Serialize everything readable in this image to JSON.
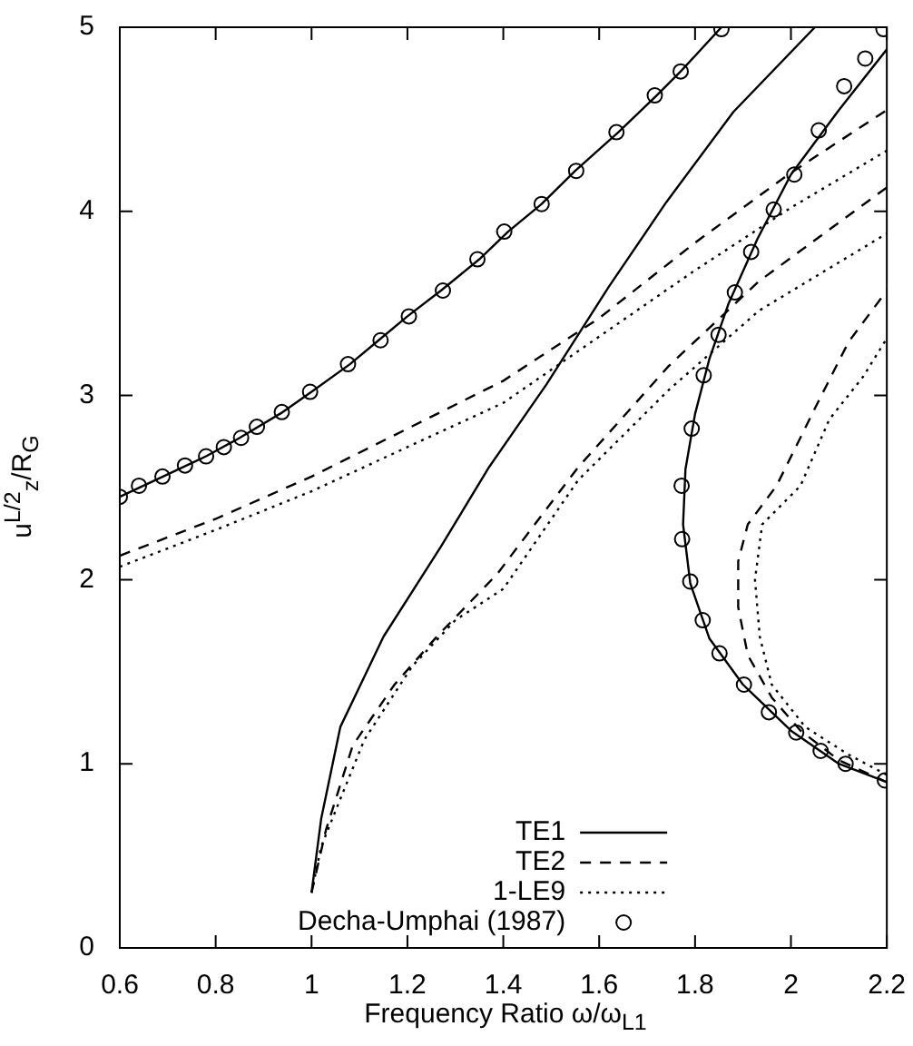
{
  "chart_data": {
    "type": "line",
    "xlabel": "Frequency Ratio ω/ω$_{L1}$",
    "ylabel": "u$^{L/2}$$_{z}$/R$_{G}$",
    "xlim": [
      0.6,
      2.2
    ],
    "xticks": [
      0.6,
      0.8,
      1,
      1.2,
      1.4,
      1.6,
      1.8,
      2,
      2.2
    ],
    "ylim": [
      0,
      5
    ],
    "yticks": [
      0,
      1,
      2,
      3,
      4,
      5
    ],
    "grid": false,
    "legend": "bottom right",
    "series": [
      {
        "name": "TE1",
        "color": "#000000",
        "type": "line",
        "marker": "none",
        "line_style": "solid",
        "x": [
          0.6,
          0.69,
          0.78,
          0.85,
          0.94,
          1.0,
          1.08,
          1.14,
          1.2,
          1.27,
          1.35,
          1.41,
          1.48,
          1.55,
          1.64,
          1.72,
          1.77,
          1.855,
          null,
          1.0,
          1.02,
          1.06,
          1.15,
          1.27,
          1.37,
          1.49,
          1.62,
          1.74,
          1.88,
          2.05,
          null,
          2.2,
          2.1,
          2.0,
          1.9,
          1.83,
          1.79,
          1.775,
          1.78,
          1.8,
          1.83,
          1.87,
          1.93,
          2.0,
          2.1,
          2.2
        ],
        "values": [
          2.45,
          2.56,
          2.67,
          2.77,
          2.91,
          3.02,
          3.17,
          3.3,
          3.43,
          3.57,
          3.74,
          3.89,
          4.04,
          4.22,
          4.43,
          4.63,
          4.76,
          5.0,
          null,
          0.3,
          0.7,
          1.2,
          1.69,
          2.18,
          2.61,
          3.06,
          3.59,
          4.05,
          4.54,
          5.0,
          null,
          0.9,
          1.0,
          1.18,
          1.43,
          1.68,
          1.98,
          2.3,
          2.6,
          2.9,
          3.2,
          3.5,
          3.85,
          4.2,
          4.55,
          4.88
        ]
      },
      {
        "name": "TE2",
        "color": "#000000",
        "type": "line",
        "marker": "none",
        "line_style": "dashed",
        "x": [
          0.6,
          0.8,
          1.0,
          1.2,
          1.4,
          1.6,
          1.8,
          2.0,
          2.2,
          null,
          1.0,
          1.03,
          1.086,
          1.173,
          1.261,
          1.387,
          1.556,
          1.745,
          1.933,
          2.2,
          null,
          2.2,
          2.1,
          2.02,
          1.96,
          1.91,
          1.89,
          1.89,
          1.91,
          1.97,
          2.05,
          2.12,
          2.2
        ],
        "values": [
          2.13,
          2.33,
          2.56,
          2.82,
          3.08,
          3.42,
          3.83,
          4.21,
          4.55,
          null,
          0.3,
          0.64,
          1.1,
          1.43,
          1.69,
          2.03,
          2.61,
          3.16,
          3.62,
          4.13,
          null,
          0.9,
          1.02,
          1.18,
          1.36,
          1.59,
          1.85,
          2.1,
          2.3,
          2.51,
          2.93,
          3.29,
          3.57
        ]
      },
      {
        "name": "1-LE9",
        "color": "#000000",
        "type": "line",
        "marker": "none",
        "line_style": "dotted",
        "x": [
          0.6,
          0.8,
          1.0,
          1.2,
          1.4,
          1.6,
          1.8,
          2.0,
          2.2,
          null,
          1.0,
          1.02,
          1.054,
          1.11,
          1.21,
          1.3,
          1.4,
          1.556,
          1.745,
          1.933,
          2.2,
          null,
          2.2,
          2.12,
          2.03,
          1.96,
          1.935,
          1.925,
          1.94,
          2.02,
          2.08,
          2.15,
          2.2
        ],
        "values": [
          2.07,
          2.27,
          2.48,
          2.72,
          2.96,
          3.32,
          3.68,
          4.02,
          4.33,
          null,
          0.3,
          0.55,
          0.77,
          1.13,
          1.53,
          1.78,
          1.95,
          2.54,
          3.03,
          3.46,
          3.88,
          null,
          0.94,
          1.05,
          1.2,
          1.43,
          1.69,
          2.0,
          2.3,
          2.51,
          2.87,
          3.1,
          3.31
        ]
      },
      {
        "name": "Decha-Umphai (1987)",
        "color": "#000000",
        "type": "scatter",
        "marker": "circle",
        "x": [
          0.6,
          0.64,
          0.689,
          0.736,
          0.78,
          0.817,
          0.853,
          0.886,
          0.938,
          0.997,
          1.076,
          1.144,
          1.203,
          1.274,
          1.346,
          1.402,
          1.48,
          1.552,
          1.636,
          1.716,
          1.77,
          1.855,
          2.193,
          2.155,
          2.111,
          2.058,
          2.007,
          1.964,
          1.917,
          1.883,
          1.849,
          1.818,
          1.793,
          1.772,
          1.773,
          1.79,
          1.816,
          1.851,
          1.902,
          1.954,
          2.011,
          2.062,
          2.114,
          2.196
        ],
        "values": [
          2.45,
          2.51,
          2.56,
          2.62,
          2.67,
          2.72,
          2.77,
          2.83,
          2.91,
          3.02,
          3.17,
          3.3,
          3.43,
          3.57,
          3.74,
          3.89,
          4.04,
          4.22,
          4.43,
          4.63,
          4.76,
          4.99,
          4.99,
          4.83,
          4.68,
          4.44,
          4.2,
          4.01,
          3.78,
          3.56,
          3.33,
          3.11,
          2.82,
          2.51,
          2.22,
          1.99,
          1.78,
          1.6,
          1.43,
          1.28,
          1.17,
          1.07,
          1.0,
          0.91
        ]
      }
    ]
  }
}
